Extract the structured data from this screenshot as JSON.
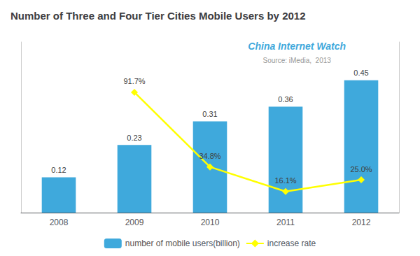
{
  "chart_data": {
    "type": "bar",
    "title": "Number of Three and Four Tier Cities Mobile Users by 2012",
    "categories": [
      "2008",
      "2009",
      "2010",
      "2011",
      "2012"
    ],
    "series": [
      {
        "name": "number of mobile users(billion)",
        "type": "bar",
        "color": "#3FA9DC",
        "values": [
          0.12,
          0.23,
          0.31,
          0.36,
          0.45
        ]
      },
      {
        "name": "increase rate",
        "type": "line",
        "axis": "y2",
        "color": "#FFFF00",
        "marker": "diamond",
        "values": [
          null,
          91.7,
          34.8,
          16.1,
          25.0
        ],
        "value_labels": [
          null,
          "91.7%",
          "34.8%",
          "16.1%",
          "25.0%"
        ]
      }
    ],
    "ylim": [
      0,
      0.58
    ],
    "y2lim": [
      0,
      130
    ],
    "tick_labels": "x",
    "grid": false,
    "legend": "bottom",
    "data_labels": true,
    "annotations": [
      {
        "text": "China Internet Watch",
        "color": "#3FA9DC"
      },
      {
        "text": "Source: iMedia,  2013",
        "color": "#999999"
      }
    ]
  }
}
